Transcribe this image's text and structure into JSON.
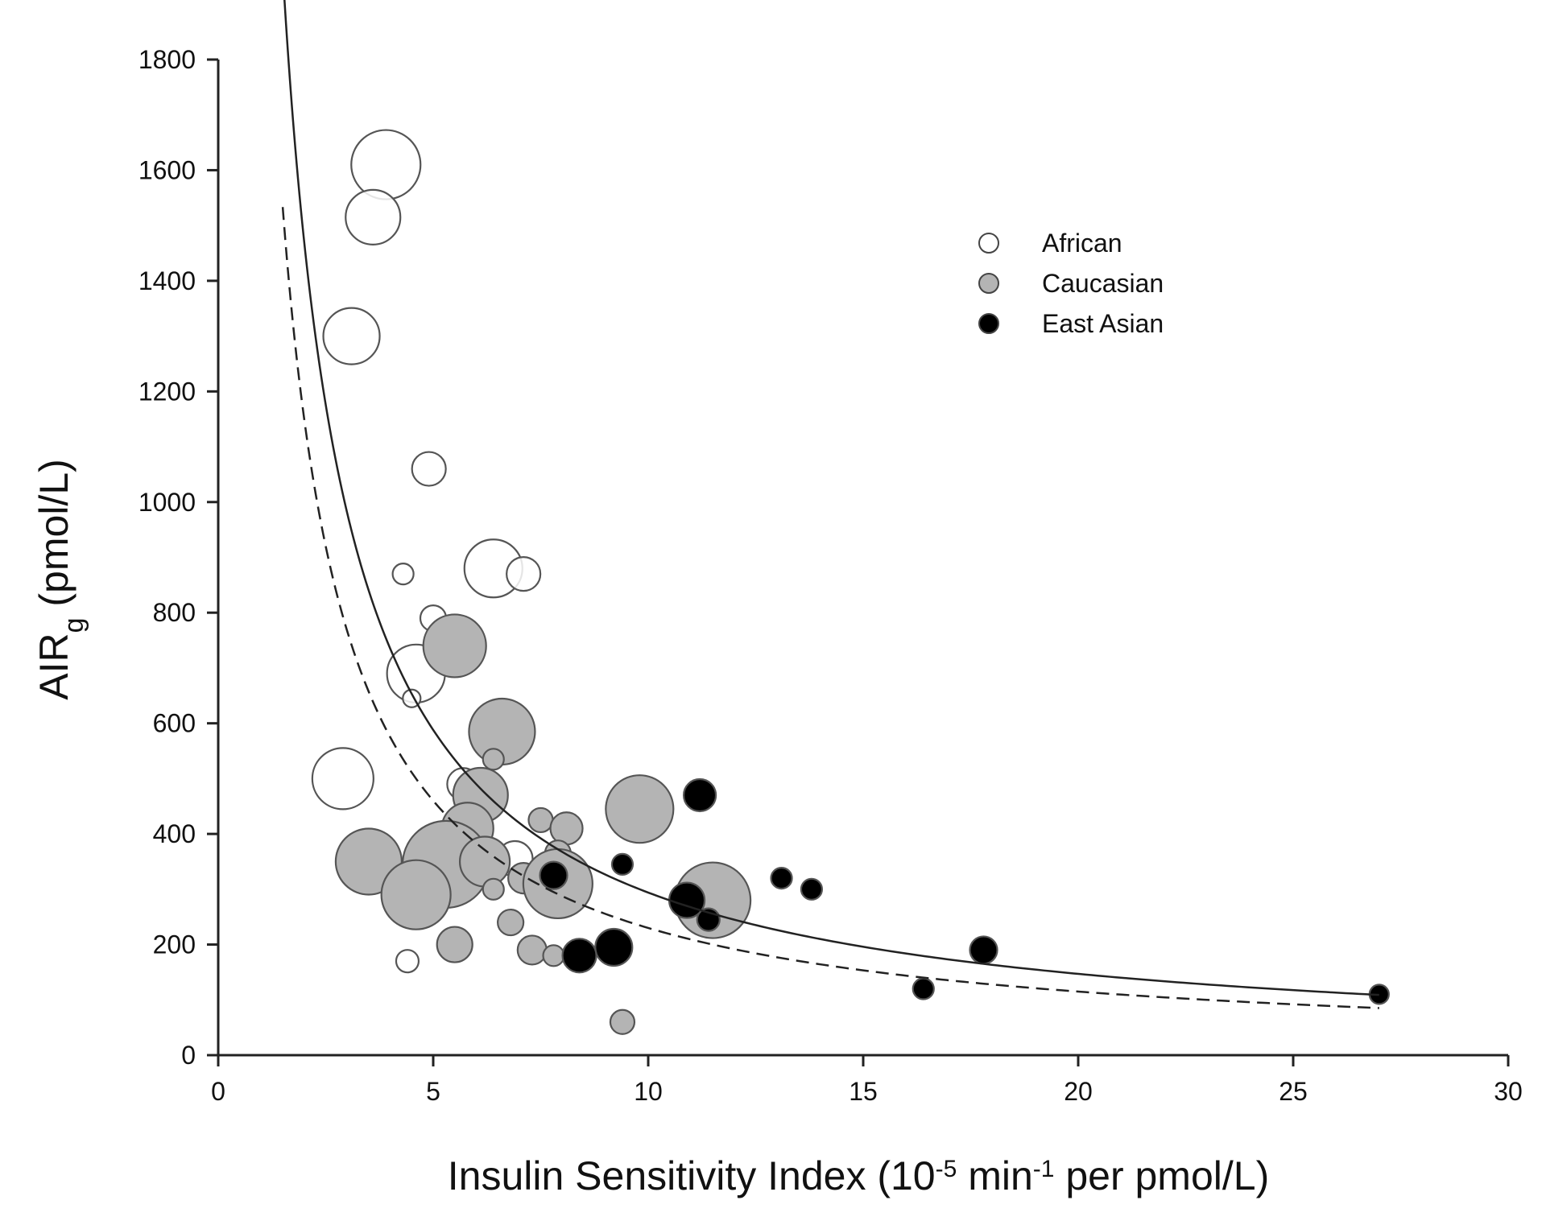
{
  "chart_data": {
    "type": "scatter",
    "title": "",
    "xlabel": {
      "text": "Insulin Sensitivity Index (10",
      "sup1": "-5",
      "mid": " min",
      "sup2": "-1",
      "end": " per pmol/L)"
    },
    "ylabel": {
      "text": "AIR",
      "sub": "g",
      "end": " (pmol/L)"
    },
    "xlim": [
      0,
      30
    ],
    "ylim": [
      0,
      1800
    ],
    "x_ticks": [
      0,
      5,
      10,
      15,
      20,
      25,
      30
    ],
    "y_ticks": [
      0,
      200,
      400,
      600,
      800,
      1000,
      1200,
      1400,
      1600,
      1800
    ],
    "grid": false,
    "legend_position": "top-right",
    "series": [
      {
        "name": "African",
        "color": "#ffffff",
        "points": [
          {
            "x": 3.9,
            "y": 1610,
            "size": 4.3
          },
          {
            "x": 3.6,
            "y": 1515,
            "size": 3.4
          },
          {
            "x": 3.1,
            "y": 1300,
            "size": 3.5
          },
          {
            "x": 4.9,
            "y": 1060,
            "size": 2.1
          },
          {
            "x": 4.3,
            "y": 870,
            "size": 1.3
          },
          {
            "x": 6.4,
            "y": 880,
            "size": 3.6
          },
          {
            "x": 7.1,
            "y": 870,
            "size": 2.1
          },
          {
            "x": 5.0,
            "y": 790,
            "size": 1.6
          },
          {
            "x": 4.6,
            "y": 690,
            "size": 3.6
          },
          {
            "x": 4.5,
            "y": 645,
            "size": 1.1
          },
          {
            "x": 2.9,
            "y": 500,
            "size": 3.8
          },
          {
            "x": 5.7,
            "y": 490,
            "size": 2.0
          },
          {
            "x": 4.4,
            "y": 170,
            "size": 1.4
          },
          {
            "x": 6.9,
            "y": 355,
            "size": 2.2
          }
        ]
      },
      {
        "name": "Caucasian",
        "color": "#b4b4b4",
        "points": [
          {
            "x": 5.5,
            "y": 740,
            "size": 3.9
          },
          {
            "x": 6.6,
            "y": 585,
            "size": 4.1
          },
          {
            "x": 6.4,
            "y": 535,
            "size": 1.3
          },
          {
            "x": 6.1,
            "y": 470,
            "size": 3.4
          },
          {
            "x": 5.8,
            "y": 410,
            "size": 3.2
          },
          {
            "x": 9.8,
            "y": 445,
            "size": 4.2
          },
          {
            "x": 7.5,
            "y": 425,
            "size": 1.5
          },
          {
            "x": 8.1,
            "y": 410,
            "size": 2.0
          },
          {
            "x": 7.9,
            "y": 365,
            "size": 1.6
          },
          {
            "x": 3.5,
            "y": 350,
            "size": 4.1
          },
          {
            "x": 5.3,
            "y": 345,
            "size": 5.4
          },
          {
            "x": 6.2,
            "y": 350,
            "size": 3.1
          },
          {
            "x": 4.6,
            "y": 290,
            "size": 4.3
          },
          {
            "x": 7.1,
            "y": 320,
            "size": 1.9
          },
          {
            "x": 7.9,
            "y": 310,
            "size": 4.3
          },
          {
            "x": 6.4,
            "y": 300,
            "size": 1.3
          },
          {
            "x": 11.5,
            "y": 280,
            "size": 4.7
          },
          {
            "x": 6.8,
            "y": 240,
            "size": 1.6
          },
          {
            "x": 5.5,
            "y": 200,
            "size": 2.2
          },
          {
            "x": 7.3,
            "y": 190,
            "size": 1.8
          },
          {
            "x": 7.8,
            "y": 180,
            "size": 1.3
          },
          {
            "x": 9.4,
            "y": 60,
            "size": 1.5
          }
        ]
      },
      {
        "name": "East Asian",
        "color": "#000000",
        "points": [
          {
            "x": 11.2,
            "y": 470,
            "size": 2.0
          },
          {
            "x": 9.4,
            "y": 345,
            "size": 1.3
          },
          {
            "x": 7.8,
            "y": 325,
            "size": 1.7
          },
          {
            "x": 13.1,
            "y": 320,
            "size": 1.3
          },
          {
            "x": 13.8,
            "y": 300,
            "size": 1.3
          },
          {
            "x": 10.9,
            "y": 280,
            "size": 2.2
          },
          {
            "x": 11.4,
            "y": 245,
            "size": 1.4
          },
          {
            "x": 9.2,
            "y": 195,
            "size": 2.3
          },
          {
            "x": 8.4,
            "y": 180,
            "size": 2.1
          },
          {
            "x": 17.8,
            "y": 190,
            "size": 1.7
          },
          {
            "x": 16.4,
            "y": 120,
            "size": 1.3
          },
          {
            "x": 27.0,
            "y": 110,
            "size": 1.2
          }
        ]
      }
    ],
    "fit_curves": [
      {
        "style": "solid",
        "k": 2940,
        "x_start": 1.5,
        "x_end": 27.0
      },
      {
        "style": "dashed",
        "k": 2300,
        "x_start": 1.5,
        "x_end": 27.0
      }
    ]
  }
}
